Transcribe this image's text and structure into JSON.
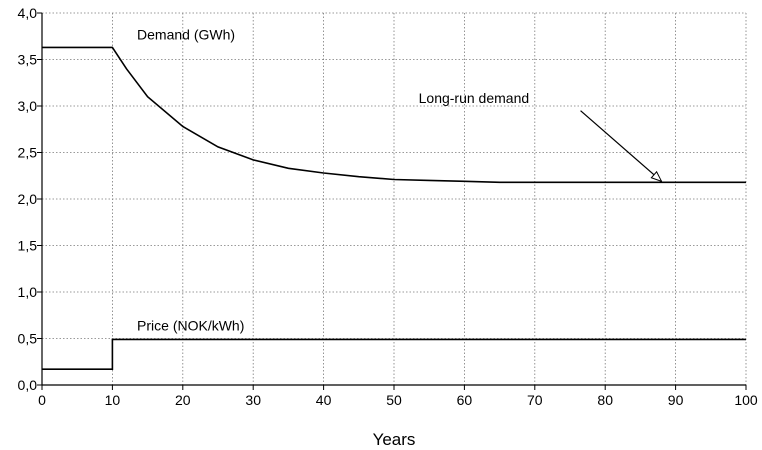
{
  "chart_data": {
    "type": "line",
    "xlabel": "Years",
    "ylabel": "",
    "xlim": [
      0,
      100
    ],
    "ylim": [
      0.0,
      4.0
    ],
    "x_ticks": [
      "0",
      "10",
      "20",
      "30",
      "40",
      "50",
      "60",
      "70",
      "80",
      "90",
      "100"
    ],
    "y_ticks": [
      "0,0",
      "0,5",
      "1,0",
      "1,5",
      "2,0",
      "2,5",
      "3,0",
      "3,5",
      "4,0"
    ],
    "grid": true,
    "series": [
      {
        "name": "Demand (GWh)",
        "color": "#000000",
        "x": [
          0,
          10,
          12,
          15,
          20,
          25,
          30,
          35,
          40,
          45,
          50,
          55,
          60,
          65,
          70,
          80,
          90,
          100
        ],
        "y": [
          3.63,
          3.63,
          3.4,
          3.1,
          2.78,
          2.56,
          2.42,
          2.33,
          2.28,
          2.24,
          2.21,
          2.2,
          2.19,
          2.18,
          2.18,
          2.18,
          2.18,
          2.18
        ]
      },
      {
        "name": "Price (NOK/kWh)",
        "color": "#000000",
        "x": [
          0,
          10,
          10,
          100
        ],
        "y": [
          0.17,
          0.17,
          0.49,
          0.49
        ]
      }
    ],
    "annotations": [
      {
        "text": "Long-run demand",
        "points_to": {
          "x": 88,
          "y": 2.19
        }
      }
    ]
  }
}
